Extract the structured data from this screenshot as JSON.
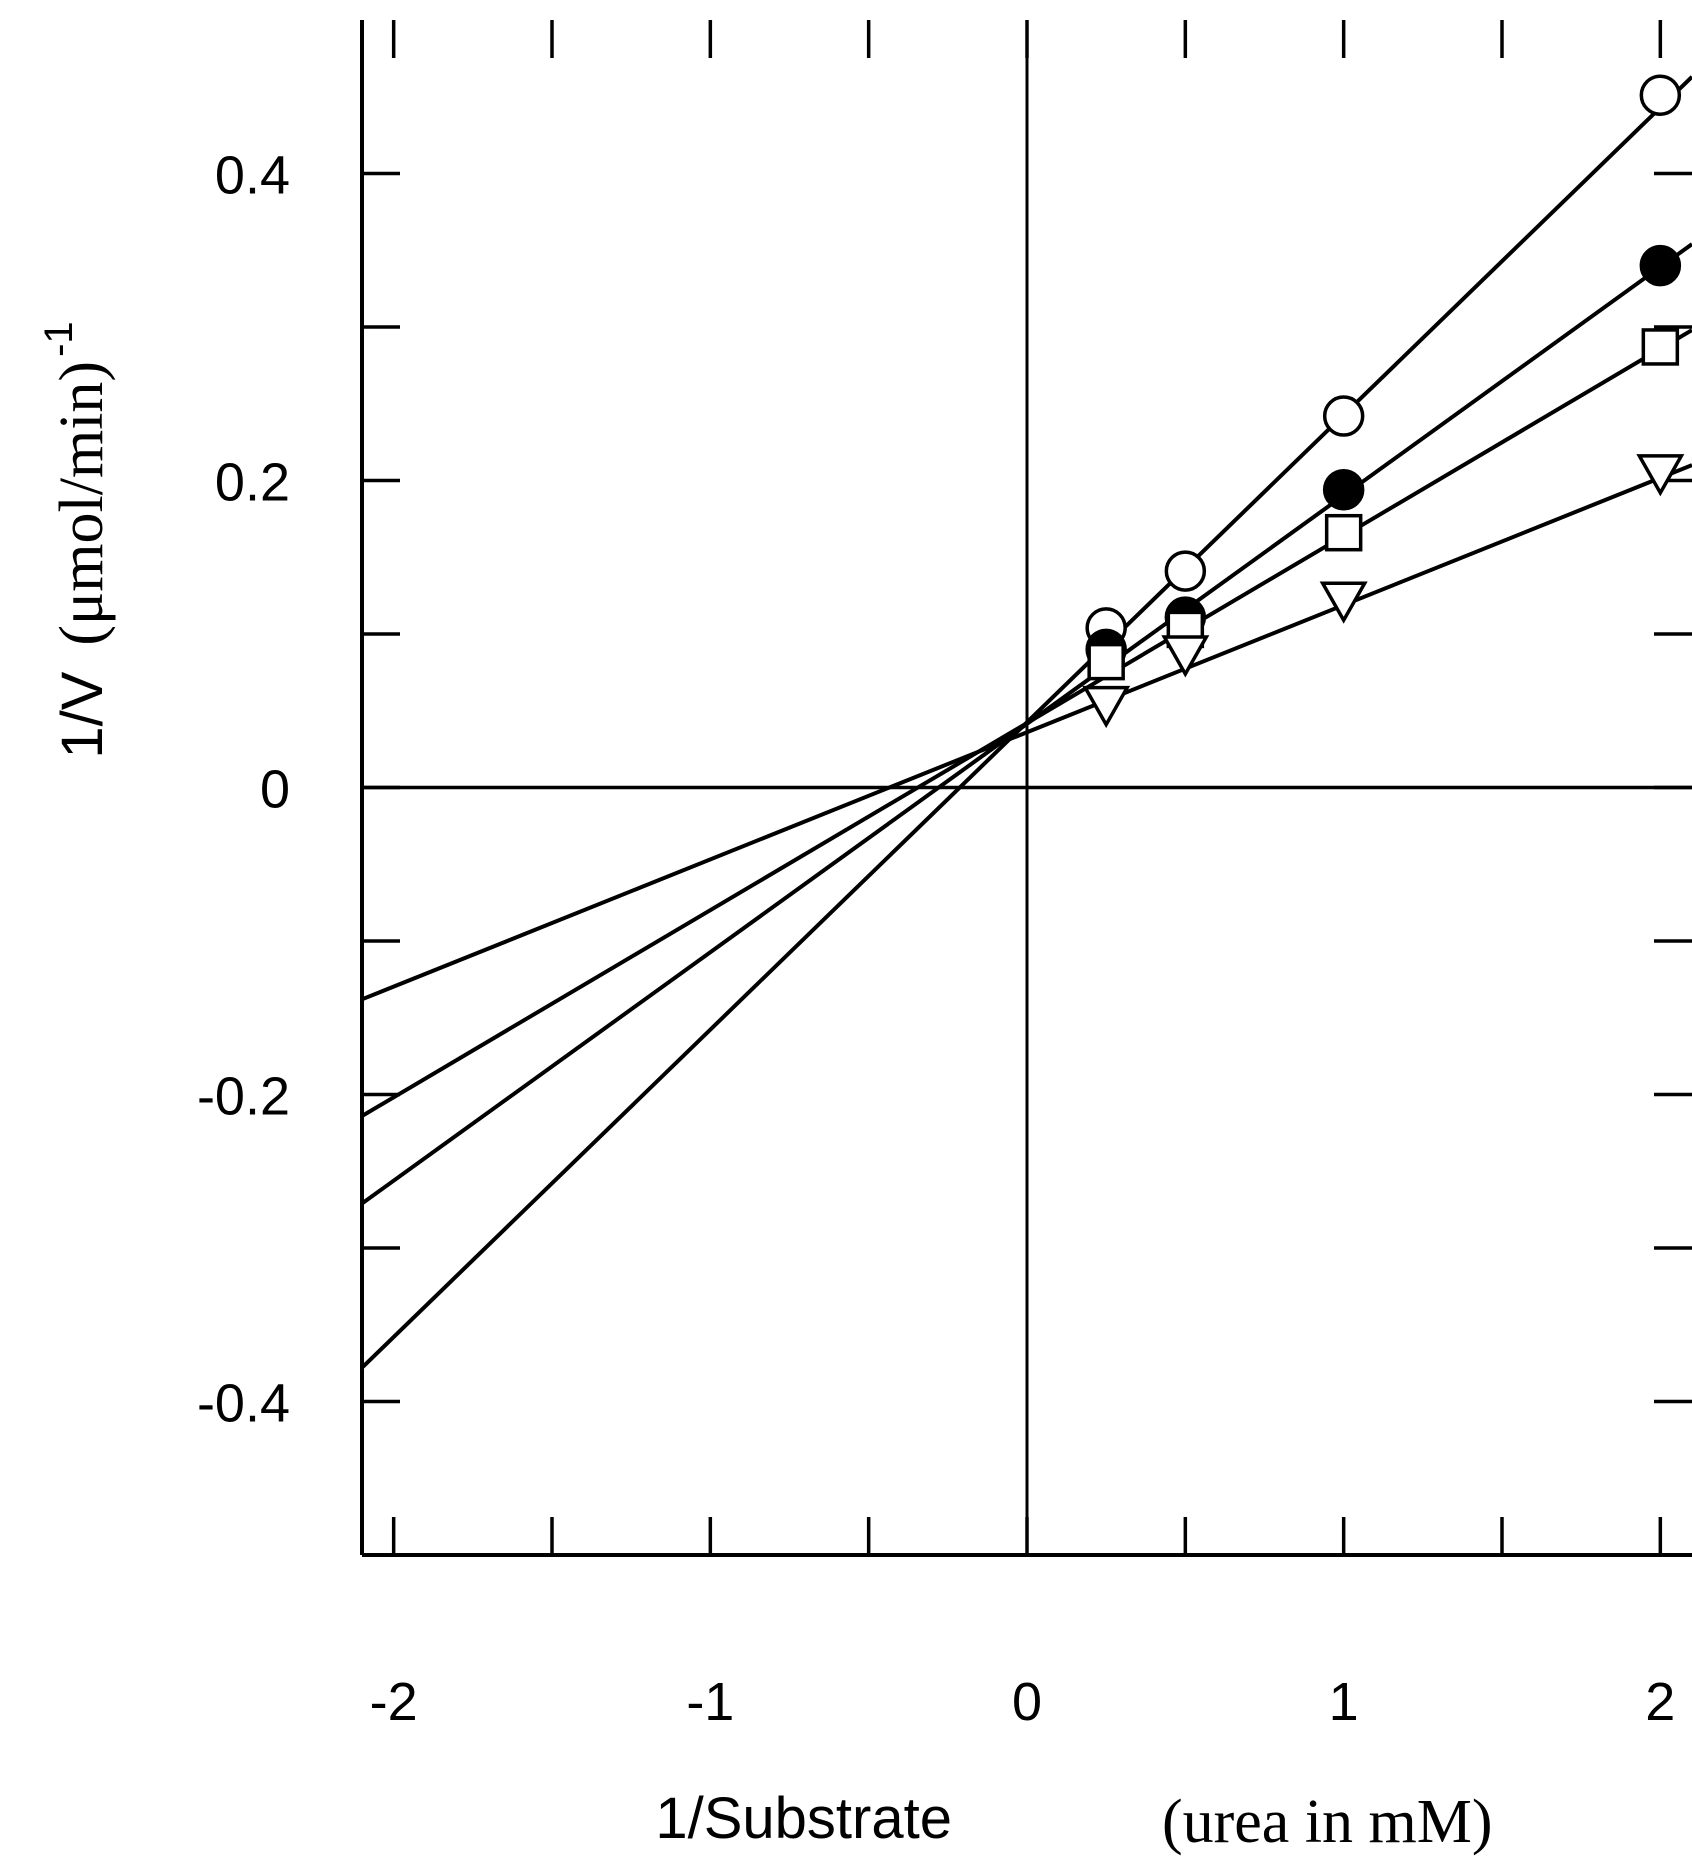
{
  "chart_data": {
    "type": "line",
    "title": "",
    "xlabel": {
      "main": "1/Substrate",
      "unit": "(urea in mM)"
    },
    "ylabel": {
      "main": "1/V",
      "unit": "(μmol/min)",
      "superscript": "-1"
    },
    "xlim": [
      -2.1,
      2.1
    ],
    "ylim": [
      -0.5,
      0.5
    ],
    "x_ticks": [
      -2,
      -1,
      0,
      1,
      2
    ],
    "x_tick_labels": [
      "-2",
      "-1",
      "0",
      "1",
      "2"
    ],
    "y_ticks": [
      -0.4,
      -0.2,
      0,
      0.2,
      0.4
    ],
    "y_tick_labels": [
      "-0.4",
      "-0.2",
      "0",
      "0.2",
      "0.4"
    ],
    "grid": false,
    "legend": "none",
    "series": [
      {
        "marker": "open-circle",
        "x": [
          0.25,
          0.5,
          1,
          2
        ],
        "y": [
          0.104,
          0.141,
          0.242,
          0.451
        ],
        "line": {
          "x": [
            -2.1,
            2.1
          ],
          "y": [
            -0.378,
            0.463
          ]
        }
      },
      {
        "marker": "filled-circle",
        "x": [
          0.25,
          0.5,
          1,
          2
        ],
        "y": [
          0.09,
          0.111,
          0.194,
          0.34
        ],
        "line": {
          "x": [
            -2.1,
            2.1
          ],
          "y": [
            -0.271,
            0.354
          ]
        }
      },
      {
        "marker": "open-square",
        "x": [
          0.25,
          0.5,
          1,
          2
        ],
        "y": [
          0.082,
          0.103,
          0.166,
          0.287
        ],
        "line": {
          "x": [
            -2.1,
            2.1
          ],
          "y": [
            -0.214,
            0.298
          ]
        }
      },
      {
        "marker": "open-triangle-down",
        "x": [
          0.25,
          0.5,
          1,
          2
        ],
        "y": [
          0.054,
          0.087,
          0.122,
          0.205
        ],
        "line": {
          "x": [
            -2.1,
            2.1
          ],
          "y": [
            -0.138,
            0.21
          ]
        }
      }
    ]
  }
}
